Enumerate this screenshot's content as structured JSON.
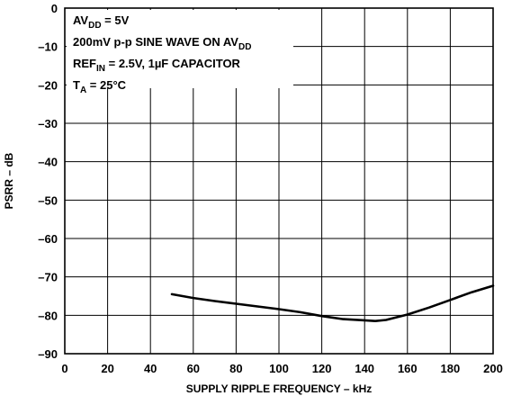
{
  "chart_data": {
    "type": "line",
    "xlabel": "SUPPLY RIPPLE FREQUENCY – kHz",
    "ylabel": "PSRR – dB",
    "xlim": [
      0,
      200
    ],
    "ylim": [
      -90,
      0
    ],
    "x_ticks": [
      "0",
      "20",
      "40",
      "60",
      "80",
      "100",
      "120",
      "140",
      "160",
      "180",
      "200"
    ],
    "y_ticks": [
      "0",
      "–10",
      "–20",
      "–30",
      "–40",
      "–50",
      "–60",
      "–70",
      "–80",
      "–90"
    ],
    "grid": true,
    "annotations": [
      {
        "main": "AV",
        "sub": "DD",
        "tail": " = 5V"
      },
      {
        "main": "200mV p-p SINE WAVE ON AV",
        "sub": "DD",
        "tail": ""
      },
      {
        "main": "REF",
        "sub": "IN",
        "tail": " = 2.5V, 1µF CAPACITOR"
      },
      {
        "main": "T",
        "sub": "A",
        "tail": " = 25°C"
      }
    ],
    "series": [
      {
        "x": [
          50,
          60,
          70,
          80,
          90,
          100,
          110,
          120,
          130,
          140,
          145,
          150,
          160,
          170,
          180,
          190,
          200
        ],
        "values": [
          -74.5,
          -75.5,
          -76.3,
          -77.0,
          -77.7,
          -78.4,
          -79.2,
          -80.2,
          -81.0,
          -81.3,
          -81.5,
          -81.2,
          -79.8,
          -78.0,
          -76.0,
          -74.0,
          -72.3
        ]
      }
    ]
  }
}
